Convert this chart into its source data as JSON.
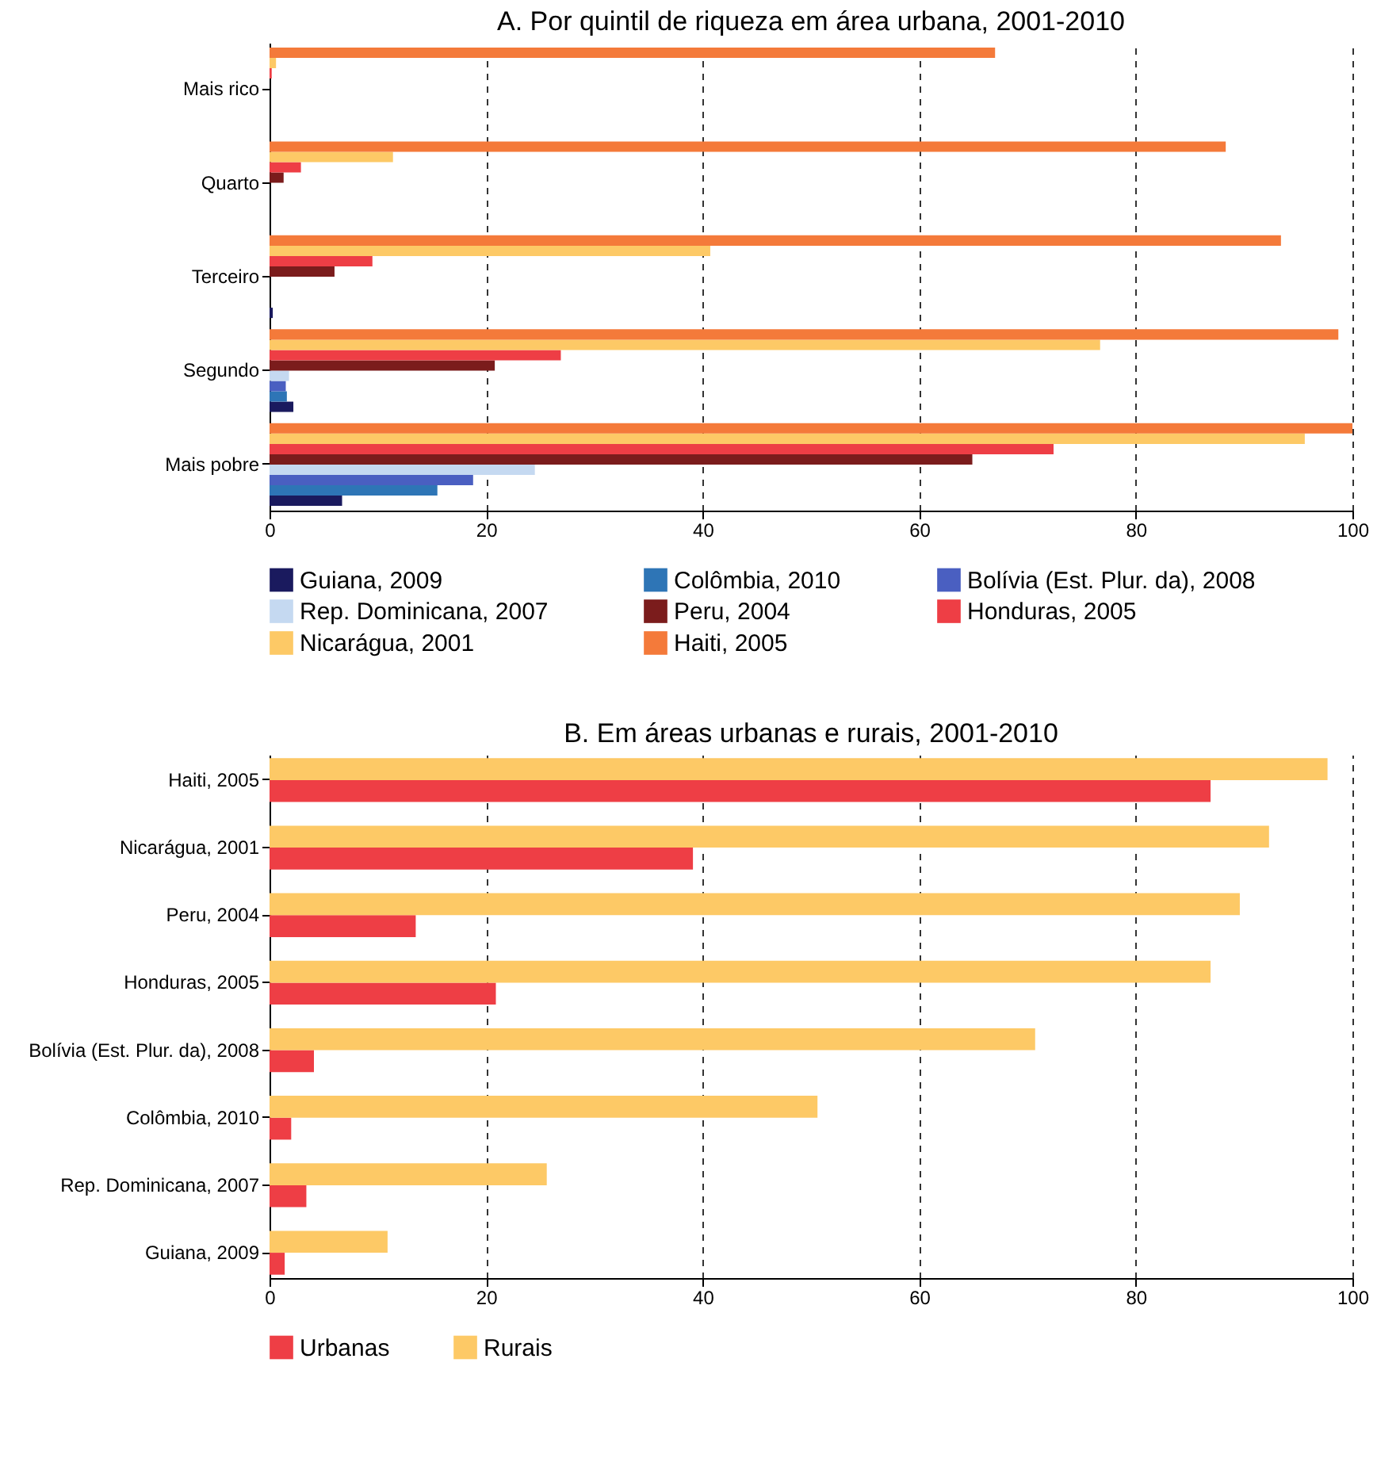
{
  "chart_data": [
    {
      "type": "bar",
      "orientation": "horizontal",
      "title": "A. Por quintil de riqueza em área urbana, 2001-2010",
      "categories": [
        "Mais rico",
        "Quarto",
        "Terceiro",
        "Segundo",
        "Mais pobre"
      ],
      "xlim": [
        0,
        100
      ],
      "xticks": [
        0,
        20,
        40,
        60,
        80,
        100
      ],
      "grid": "x",
      "legend": "bottom",
      "series": [
        {
          "name": "Guiana, 2009",
          "color": "#1a1a5e",
          "values": [
            0,
            0,
            0.3,
            2.2,
            6.7
          ]
        },
        {
          "name": "Colômbia, 2010",
          "color": "#2e75b6",
          "values": [
            0,
            0,
            0,
            1.6,
            15.5
          ]
        },
        {
          "name": "Bolívia (Est. Plur. da), 2008",
          "color": "#4a5fc1",
          "values": [
            0,
            0,
            0,
            1.5,
            18.8
          ]
        },
        {
          "name": "Rep. Dominicana, 2007",
          "color": "#c5d9f1",
          "values": [
            0,
            0,
            0,
            1.8,
            24.5
          ]
        },
        {
          "name": "Peru, 2004",
          "color": "#7b1c1c",
          "values": [
            0,
            1.3,
            6,
            20.8,
            64.9
          ]
        },
        {
          "name": "Honduras, 2005",
          "color": "#ee3e45",
          "values": [
            0.2,
            2.9,
            9.5,
            26.9,
            72.4
          ]
        },
        {
          "name": "Nicarágua, 2001",
          "color": "#fdc966",
          "values": [
            0.6,
            11.4,
            40.7,
            76.7,
            95.6
          ]
        },
        {
          "name": "Haiti, 2005",
          "color": "#f47a3a",
          "values": [
            67,
            88.3,
            93.4,
            98.7,
            100
          ]
        }
      ]
    },
    {
      "type": "bar",
      "orientation": "horizontal",
      "title": "B. Em áreas urbanas e rurais, 2001-2010",
      "categories": [
        "Haiti, 2005",
        "Nicarágua, 2001",
        "Peru, 2004",
        "Honduras, 2005",
        "Bolívia (Est. Plur. da), 2008",
        "Colômbia, 2010",
        "Rep. Dominicana, 2007",
        "Guiana, 2009"
      ],
      "xlim": [
        0,
        100
      ],
      "xticks": [
        0,
        20,
        40,
        60,
        80,
        100
      ],
      "grid": "x",
      "legend": "bottom",
      "series": [
        {
          "name": "Urbanas",
          "color": "#ee3e45",
          "values": [
            86.9,
            39.1,
            13.5,
            20.9,
            4.1,
            2.0,
            3.4,
            1.4
          ]
        },
        {
          "name": "Rurais",
          "color": "#fdc966",
          "values": [
            97.7,
            92.3,
            89.6,
            86.9,
            70.7,
            50.6,
            25.6,
            10.9
          ]
        }
      ]
    }
  ]
}
